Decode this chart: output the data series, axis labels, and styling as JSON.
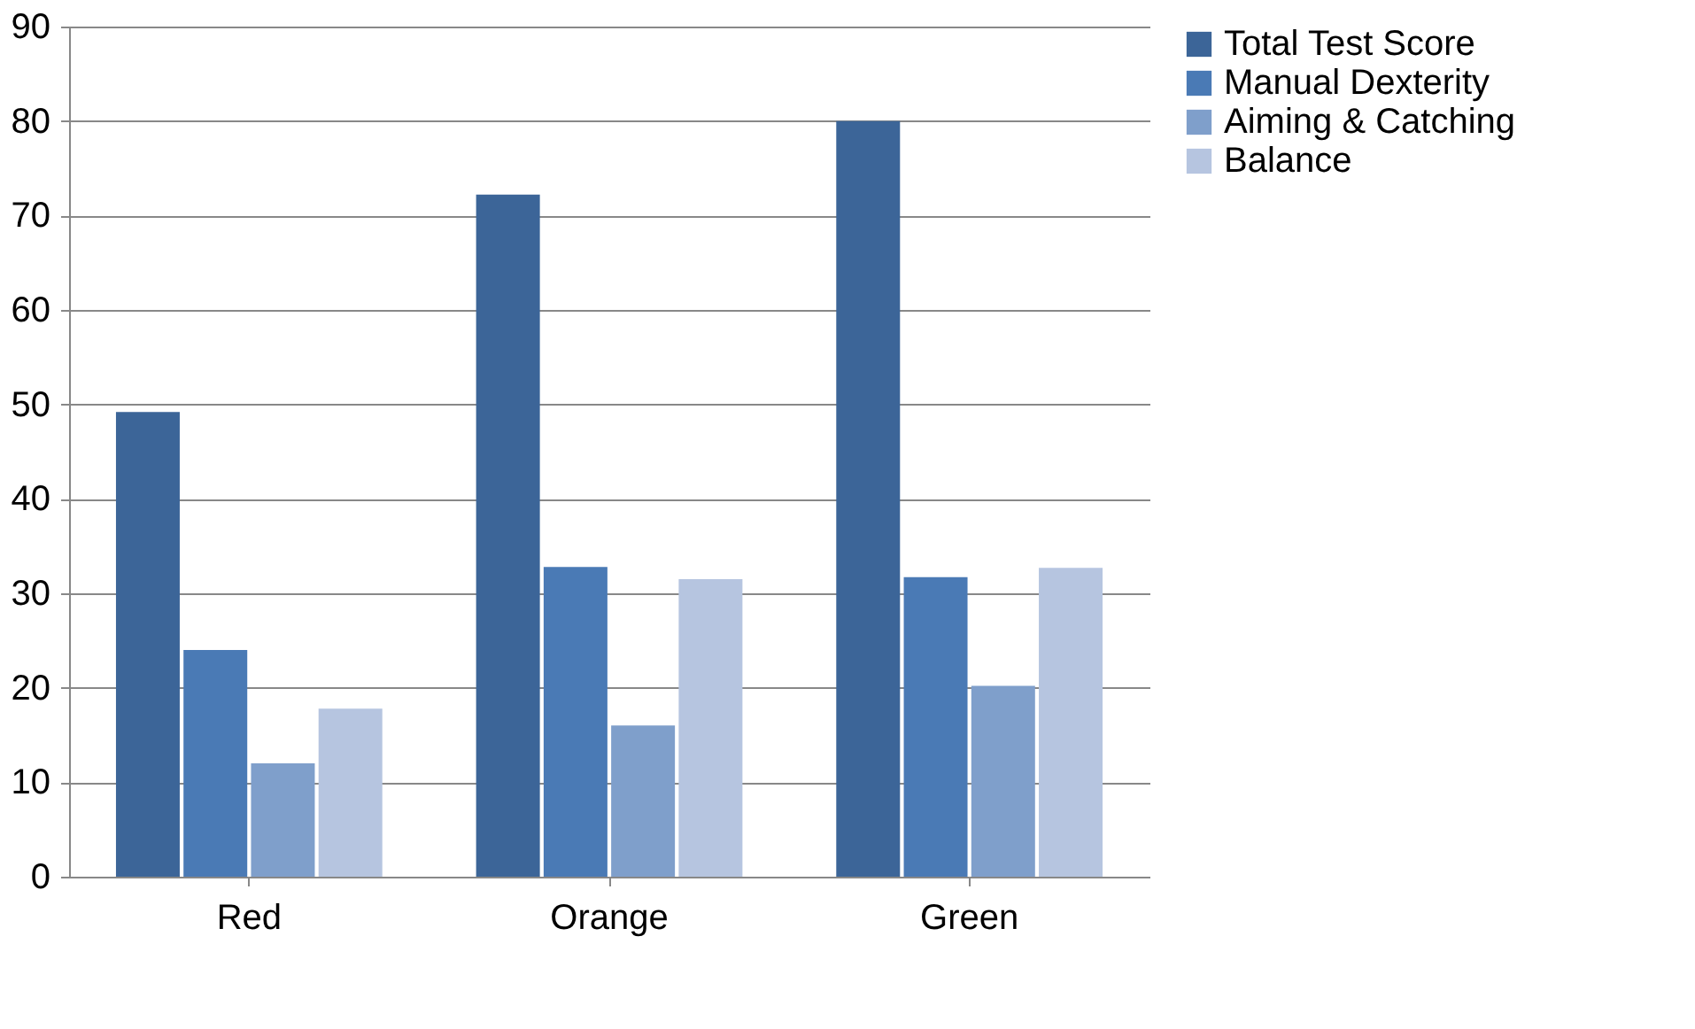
{
  "chart_data": {
    "type": "bar",
    "categories": [
      "Red",
      "Orange",
      "Green"
    ],
    "series": [
      {
        "name": "Total Test Score",
        "color": "#3c6598",
        "values": [
          49.2,
          72.2,
          80
        ]
      },
      {
        "name": "Manual Dexterity",
        "color": "#4a7ab5",
        "values": [
          24,
          32.8,
          31.7
        ]
      },
      {
        "name": "Aiming & Catching",
        "color": "#7f9fcb",
        "values": [
          12,
          16,
          20.2
        ]
      },
      {
        "name": "Balance",
        "color": "#b6c5e0",
        "values": [
          17.8,
          31.5,
          32.7
        ]
      }
    ],
    "ylim": [
      0,
      90
    ],
    "yticks": [
      0,
      10,
      20,
      30,
      40,
      50,
      60,
      70,
      80,
      90
    ],
    "grid": "y",
    "legend": "right"
  }
}
